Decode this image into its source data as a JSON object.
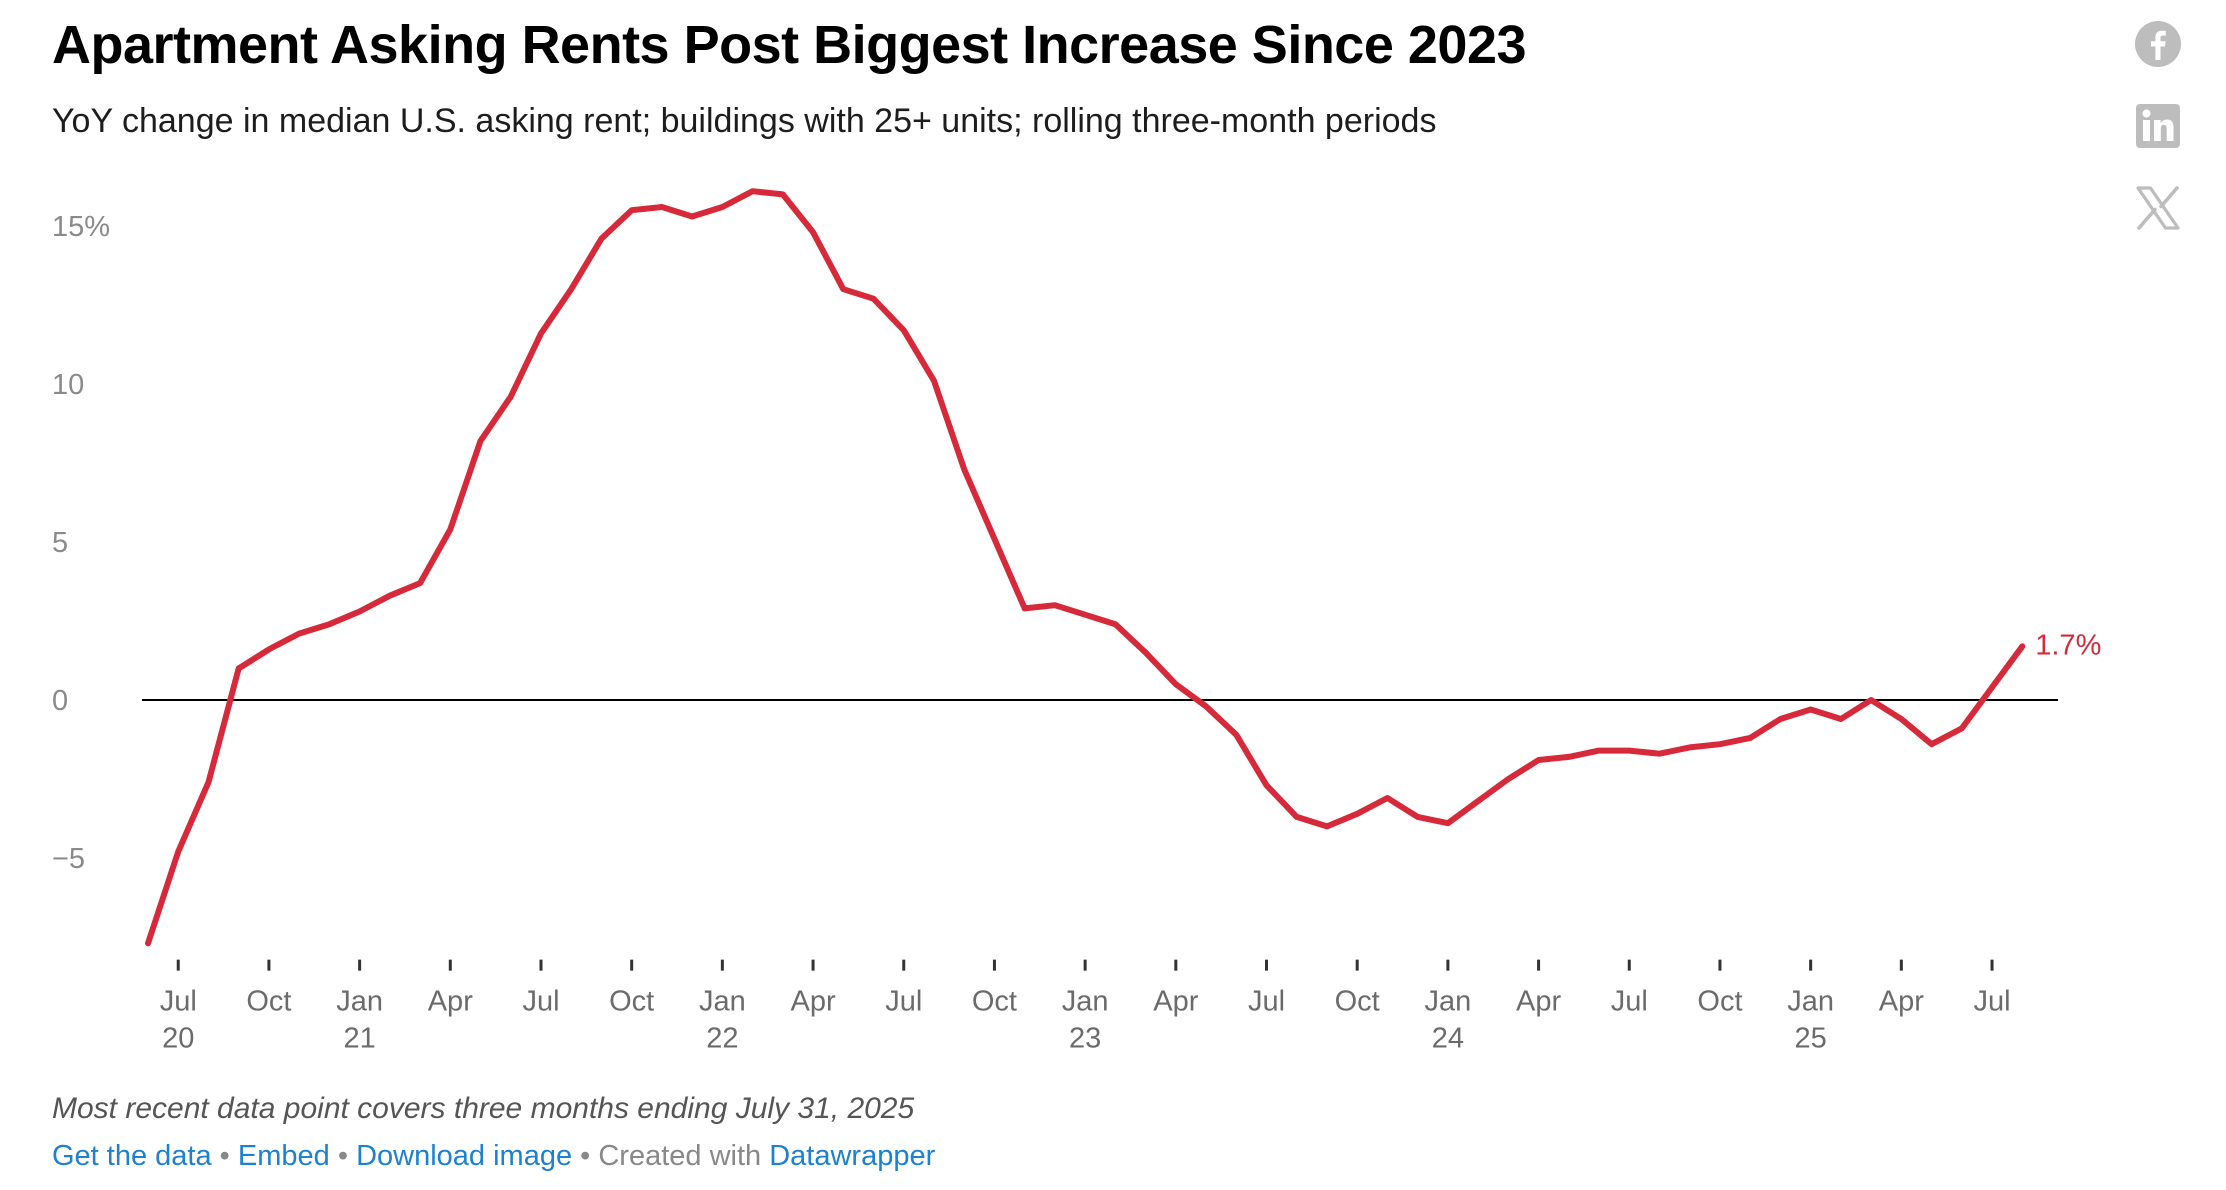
{
  "title": "Apartment Asking Rents Post Biggest Increase Since 2023",
  "subtitle": "YoY change in median U.S. asking rent; buildings with 25+ units; rolling three-month periods",
  "notes": "Most recent data point covers three months ending July 31, 2025",
  "footer": {
    "get_data": "Get the data",
    "sep1": " • ",
    "embed": "Embed",
    "sep2": "  • ",
    "download": "Download image",
    "sep3": " • Created with ",
    "datawrapper": "Datawrapper"
  },
  "share": {
    "facebook": "facebook-icon",
    "linkedin": "linkedin-icon",
    "x": "x-icon",
    "icon_color": "#bdbdbd"
  },
  "colors": {
    "line": "#d6293a",
    "zero_line": "#000000",
    "tick": "#333333"
  },
  "chart_data": {
    "type": "line",
    "title": "Apartment Asking Rents Post Biggest Increase Since 2023",
    "xlabel": "",
    "ylabel": "",
    "ylim": [
      -7.9,
      16.5
    ],
    "y_ticks": [
      {
        "value": 15,
        "label": "15%"
      },
      {
        "value": 10,
        "label": "10"
      },
      {
        "value": 5,
        "label": "5"
      },
      {
        "value": 0,
        "label": "0"
      },
      {
        "value": -5,
        "label": "−5"
      }
    ],
    "x_ticks": [
      {
        "index": 1,
        "label": "Jul",
        "year": "20"
      },
      {
        "index": 4,
        "label": "Oct",
        "year": ""
      },
      {
        "index": 7,
        "label": "Jan",
        "year": "21"
      },
      {
        "index": 10,
        "label": "Apr",
        "year": ""
      },
      {
        "index": 13,
        "label": "Jul",
        "year": ""
      },
      {
        "index": 16,
        "label": "Oct",
        "year": ""
      },
      {
        "index": 19,
        "label": "Jan",
        "year": "22"
      },
      {
        "index": 22,
        "label": "Apr",
        "year": ""
      },
      {
        "index": 25,
        "label": "Jul",
        "year": ""
      },
      {
        "index": 28,
        "label": "Oct",
        "year": ""
      },
      {
        "index": 31,
        "label": "Jan",
        "year": "23"
      },
      {
        "index": 34,
        "label": "Apr",
        "year": ""
      },
      {
        "index": 37,
        "label": "Jul",
        "year": ""
      },
      {
        "index": 40,
        "label": "Oct",
        "year": ""
      },
      {
        "index": 43,
        "label": "Jan",
        "year": "24"
      },
      {
        "index": 46,
        "label": "Apr",
        "year": ""
      },
      {
        "index": 49,
        "label": "Jul",
        "year": ""
      },
      {
        "index": 52,
        "label": "Oct",
        "year": ""
      },
      {
        "index": 55,
        "label": "Jan",
        "year": "25"
      },
      {
        "index": 58,
        "label": "Apr",
        "year": ""
      },
      {
        "index": 61,
        "label": "Jul",
        "year": ""
      }
    ],
    "series": [
      {
        "name": "YoY change in median asking rent",
        "start": "2020-06",
        "values": [
          -7.7,
          -4.8,
          -2.6,
          1.0,
          1.6,
          2.1,
          2.4,
          2.8,
          3.3,
          3.7,
          5.4,
          8.2,
          9.6,
          11.6,
          13.0,
          14.6,
          15.5,
          15.6,
          15.3,
          15.6,
          16.1,
          16.0,
          14.8,
          13.0,
          12.7,
          11.7,
          10.1,
          7.3,
          5.1,
          2.9,
          3.0,
          2.7,
          2.4,
          1.5,
          0.5,
          -0.2,
          -1.1,
          -2.7,
          -3.7,
          -4.0,
          -3.6,
          -3.1,
          -3.7,
          -3.9,
          -3.2,
          -2.5,
          -1.9,
          -1.8,
          -1.6,
          -1.6,
          -1.7,
          -1.5,
          -1.4,
          -1.2,
          -0.6,
          -0.3,
          -0.6,
          0.0,
          -0.6,
          -1.4,
          -0.9,
          0.4,
          1.7
        ]
      }
    ],
    "end_label": "1.7%",
    "legend": "none",
    "grid": false
  }
}
